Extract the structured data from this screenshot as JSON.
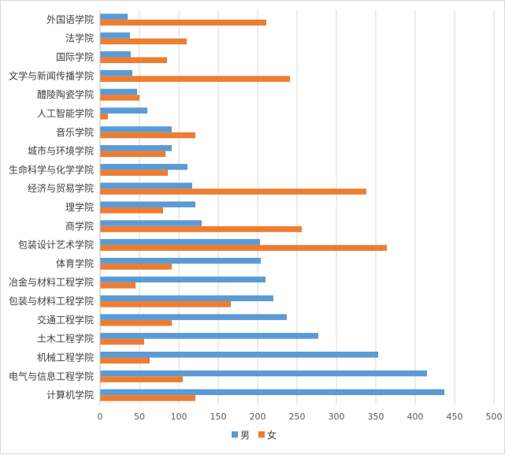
{
  "chart_data": {
    "type": "bar",
    "orientation": "horizontal",
    "categories": [
      "外国语学院",
      "法学院",
      "国际学院",
      "文学与新闻传播学院",
      "醴陵陶瓷学院",
      "人工智能学院",
      "音乐学院",
      "城市与环境学院",
      "生命科学与化学学院",
      "经济与贸易学院",
      "理学院",
      "商学院",
      "包装设计艺术学院",
      "体育学院",
      "冶金与材料工程学院",
      "包装与材料工程学院",
      "交通工程学院",
      "土木工程学院",
      "机械工程学院",
      "电气与信息工程学院",
      "计算机学院"
    ],
    "series": [
      {
        "name": "男",
        "color": "#5b9bd5",
        "values": [
          35,
          38,
          39,
          41,
          47,
          60,
          91,
          91,
          111,
          117,
          121,
          129,
          203,
          204,
          210,
          220,
          237,
          277,
          353,
          415,
          437
        ]
      },
      {
        "name": "女",
        "color": "#ed7d31",
        "values": [
          211,
          110,
          85,
          241,
          50,
          10,
          121,
          83,
          86,
          338,
          80,
          256,
          364,
          91,
          45,
          166,
          91,
          56,
          63,
          105,
          121
        ]
      }
    ],
    "xlim": [
      0,
      500
    ],
    "xticks": [
      0,
      50,
      100,
      150,
      200,
      250,
      300,
      350,
      400,
      450,
      500
    ],
    "grid": true,
    "legend": "bottom"
  }
}
